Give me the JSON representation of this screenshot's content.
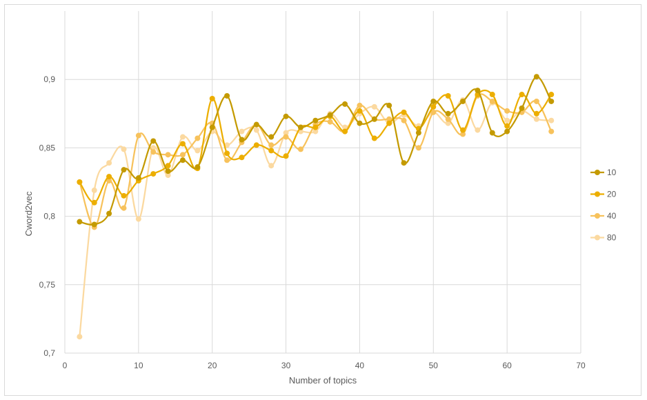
{
  "chart_data": {
    "type": "line",
    "title": "",
    "xlabel": "Number of topics",
    "ylabel": "Cword2vec",
    "xlim": [
      0,
      70
    ],
    "ylim": [
      0.7,
      0.95
    ],
    "xticks": [
      0,
      10,
      20,
      30,
      40,
      50,
      60,
      70
    ],
    "xtick_labels": [
      "0",
      "10",
      "20",
      "30",
      "40",
      "50",
      "60",
      "70"
    ],
    "yticks": [
      0.7,
      0.75,
      0.8,
      0.85,
      0.9
    ],
    "ytick_labels": [
      "0,7",
      "0,75",
      "0,8",
      "0,85",
      "0,9"
    ],
    "grid": "vertical and horizontal major gridlines",
    "legend_position": "right",
    "x": [
      2,
      4,
      6,
      8,
      10,
      12,
      14,
      16,
      18,
      20,
      22,
      24,
      26,
      28,
      30,
      32,
      34,
      36,
      38,
      40,
      42,
      44,
      46,
      48,
      50,
      52,
      54,
      56,
      58,
      60,
      62,
      64,
      66
    ],
    "series": [
      {
        "name": "10",
        "color": "#c49a00",
        "values": [
          0.796,
          0.794,
          0.802,
          0.834,
          0.828,
          0.855,
          0.833,
          0.841,
          0.836,
          0.865,
          0.888,
          0.856,
          0.867,
          0.858,
          0.873,
          0.865,
          0.87,
          0.874,
          0.882,
          0.868,
          0.871,
          0.881,
          0.839,
          0.861,
          0.884,
          0.875,
          0.884,
          0.892,
          0.861,
          0.862,
          0.879,
          0.902,
          0.884
        ]
      },
      {
        "name": "20",
        "color": "#ecae00",
        "values": [
          0.825,
          0.81,
          0.829,
          0.815,
          0.826,
          0.831,
          0.837,
          0.853,
          0.835,
          0.886,
          0.846,
          0.843,
          0.852,
          0.848,
          0.844,
          0.865,
          0.865,
          0.873,
          0.862,
          0.877,
          0.857,
          0.868,
          0.876,
          0.864,
          0.88,
          0.888,
          0.863,
          0.889,
          0.889,
          0.866,
          0.889,
          0.875,
          0.889
        ]
      },
      {
        "name": "40",
        "color": "#f7c25c",
        "values": [
          0.825,
          0.792,
          0.826,
          0.806,
          0.859,
          0.847,
          0.845,
          0.845,
          0.857,
          0.868,
          0.841,
          0.854,
          0.867,
          0.852,
          0.858,
          0.849,
          0.867,
          0.869,
          0.862,
          0.881,
          0.871,
          0.871,
          0.87,
          0.85,
          0.876,
          0.871,
          0.86,
          0.888,
          0.884,
          0.877,
          0.876,
          0.884,
          0.862
        ]
      },
      {
        "name": "80",
        "color": "#fbd9a0",
        "values": [
          0.712,
          0.819,
          0.839,
          0.849,
          0.798,
          0.85,
          0.83,
          0.858,
          0.848,
          0.862,
          0.852,
          0.862,
          0.863,
          0.837,
          0.861,
          0.862,
          0.862,
          0.875,
          0.865,
          0.875,
          0.88,
          0.868,
          0.874,
          0.866,
          0.876,
          0.868,
          0.885,
          0.863,
          0.883,
          0.87,
          0.877,
          0.871,
          0.87
        ]
      }
    ]
  }
}
